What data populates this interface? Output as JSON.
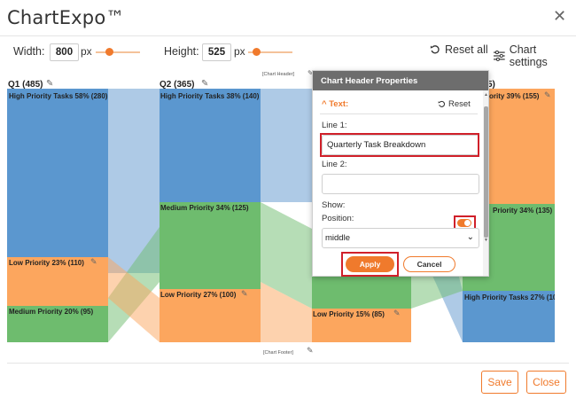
{
  "app": {
    "title": "ChartExpo™",
    "close_icon": "close-icon"
  },
  "toolbar": {
    "width_label": "Width:",
    "width_value": "800",
    "width_unit": "px",
    "height_label": "Height:",
    "height_value": "525",
    "height_unit": "px",
    "reset_all_label": "Reset all",
    "chart_settings_label": "Chart settings"
  },
  "chart": {
    "header_placeholder": "[Chart Header]",
    "footer_placeholder": "[Chart Footer]",
    "columns": [
      {
        "label": "Q1 (485)"
      },
      {
        "label": "Q2 (365)"
      },
      {
        "label": "5)"
      }
    ],
    "nodes": {
      "q1_high": "High Priority Tasks 58% (280)",
      "q1_low": "Low Priority 23% (110)",
      "q1_medium": "Medium Priority 20% (95)",
      "q2_high": "High Priority Tasks 38% (140)",
      "q2_medium": "Medium Priority 34% (125)",
      "q2_low": "Low Priority 27% (100)",
      "q3_low": "Low Priority 15% (85)",
      "q4_low": "ority 39% (155)",
      "q4_medium": "Priority 34% (135)",
      "q4_high": "High Priority Tasks 27% (10"
    },
    "colors": {
      "blue": "#6b9fd1",
      "green": "#6ebc6e",
      "orange": "#fca65e",
      "accent": "#f07a2c"
    }
  },
  "popup": {
    "title": "Chart Header Properties",
    "section_label": "Text:",
    "reset_label": "Reset",
    "line1_label": "Line 1:",
    "line1_value": "Quarterly Task Breakdown",
    "line2_label": "Line 2:",
    "line2_value": "",
    "show_label": "Show:",
    "show_on": true,
    "position_label": "Position:",
    "position_value": "middle",
    "apply_label": "Apply",
    "cancel_label": "Cancel"
  },
  "footer": {
    "save_label": "Save",
    "close_label": "Close"
  }
}
